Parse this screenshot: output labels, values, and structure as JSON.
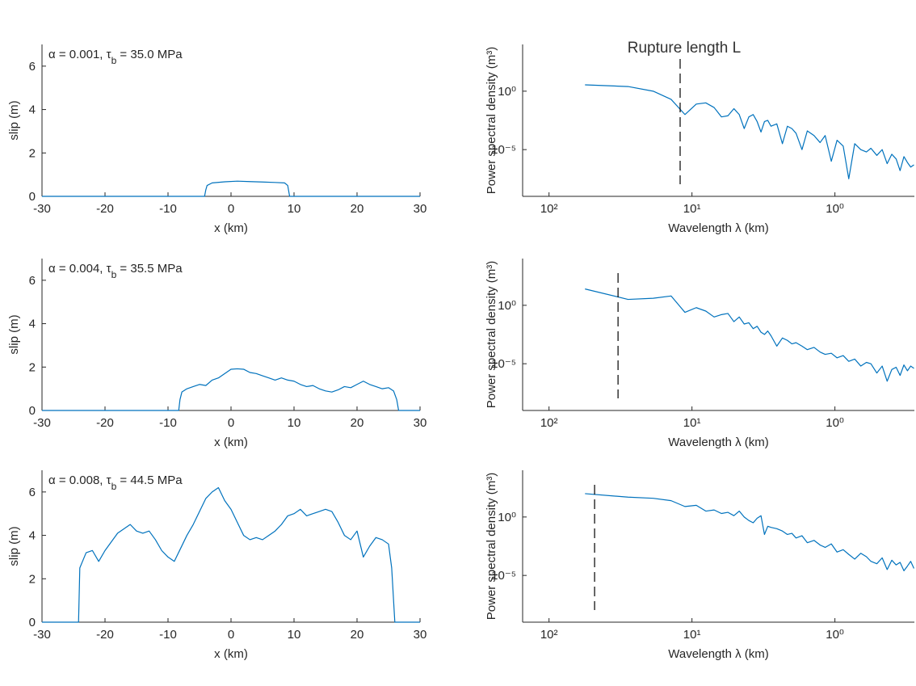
{
  "chart_data": [
    {
      "type": "line",
      "annotation": [
        "α = 0.001, τ",
        "b",
        " = 35.0 MPa"
      ],
      "xlabel": "x (km)",
      "ylabel": "slip (m)",
      "color": "#0072bd",
      "xlim": [
        -30,
        30
      ],
      "ylim": [
        0,
        7
      ],
      "xticks": [
        -30,
        -20,
        -10,
        0,
        10,
        20,
        30
      ],
      "yticks": [
        0,
        2,
        4,
        6
      ],
      "x": [
        -30,
        -4.2,
        -4,
        -3.8,
        -3,
        -1,
        1,
        3,
        5,
        7,
        8.5,
        9,
        9.3,
        30
      ],
      "values": [
        0,
        0,
        0.3,
        0.5,
        0.62,
        0.67,
        0.7,
        0.68,
        0.66,
        0.64,
        0.62,
        0.5,
        0,
        0
      ]
    },
    {
      "type": "line",
      "xlabel": "Wavelength λ (km)",
      "ylabel": "Power spectral density (m³)",
      "color": "#0072bd",
      "log_x": true,
      "log_y": true,
      "rupture_label": "Rupture length L",
      "rupture_length": 12.1,
      "xlim": [
        153,
        0.278
      ],
      "ylim": [
        1e-09,
        10000.0
      ],
      "xticks": [
        {
          "value": 100,
          "label": "10²"
        },
        {
          "value": 10,
          "label": "10¹"
        },
        {
          "value": 1,
          "label": "10⁰"
        }
      ],
      "yticks": [
        {
          "value": 1,
          "label": "10⁰"
        },
        {
          "value": 1e-05,
          "label": "10⁻⁵"
        }
      ],
      "x": [
        56,
        28,
        18.67,
        14,
        11.2,
        9.33,
        8,
        7,
        6.22,
        5.6,
        5.09,
        4.67,
        4.31,
        4,
        3.73,
        3.5,
        3.29,
        3.11,
        2.95,
        2.8,
        2.55,
        2.33,
        2.15,
        2,
        1.87,
        1.7,
        1.56,
        1.4,
        1.27,
        1.17,
        1.06,
        0.966,
        0.875,
        0.8,
        0.727,
        0.659,
        0.602,
        0.56,
        0.509,
        0.467,
        0.431,
        0.4,
        0.373,
        0.35,
        0.329,
        0.311,
        0.295,
        0.28
      ],
      "values": [
        3.5,
        2.5,
        1,
        0.2,
        0.01,
        0.079,
        0.1,
        0.04,
        0.0063,
        0.0079,
        0.032,
        0.01,
        0.00063,
        0.0063,
        0.01,
        0.0025,
        0.00032,
        0.0025,
        0.0032,
        0.001,
        0.0016,
        3.2e-05,
        0.001,
        0.00063,
        0.00025,
        1e-05,
        0.0004,
        0.00016,
        4e-05,
        0.00016,
        1e-06,
        6.3e-05,
        2e-05,
        3.2e-08,
        3.2e-05,
        1e-05,
        6.3e-06,
        1.3e-05,
        3.2e-06,
        1e-05,
        6.3e-07,
        4e-06,
        1.6e-06,
        1.6e-07,
        2.5e-06,
        7.9e-07,
        3.2e-07,
        5e-07
      ]
    },
    {
      "type": "line",
      "annotation": [
        "α = 0.004, τ",
        "b",
        " = 35.5 MPa"
      ],
      "xlabel": "x (km)",
      "ylabel": "slip (m)",
      "color": "#0072bd",
      "xlim": [
        -30,
        30
      ],
      "ylim": [
        0,
        7
      ],
      "xticks": [
        -30,
        -20,
        -10,
        0,
        10,
        20,
        30
      ],
      "yticks": [
        0,
        2,
        4,
        6
      ],
      "x": [
        -30,
        -8.3,
        -8.1,
        -7.8,
        -7,
        -6,
        -5,
        -4,
        -3,
        -2,
        -1,
        0,
        1,
        2,
        3,
        4,
        5,
        6,
        7,
        8,
        9,
        10,
        11,
        12,
        13,
        14,
        15,
        16,
        17,
        18,
        19,
        20,
        21,
        22,
        23,
        24,
        25,
        25.8,
        26.3,
        26.6,
        30
      ],
      "values": [
        0,
        0,
        0.5,
        0.85,
        1.0,
        1.1,
        1.2,
        1.15,
        1.4,
        1.5,
        1.7,
        1.9,
        1.92,
        1.9,
        1.75,
        1.7,
        1.6,
        1.5,
        1.4,
        1.5,
        1.4,
        1.35,
        1.2,
        1.1,
        1.15,
        1.0,
        0.9,
        0.85,
        0.95,
        1.1,
        1.05,
        1.2,
        1.35,
        1.2,
        1.1,
        1.0,
        1.05,
        0.9,
        0.5,
        0,
        0
      ]
    },
    {
      "type": "line",
      "xlabel": "Wavelength λ (km)",
      "ylabel": "Power spectral density (m³)",
      "color": "#0072bd",
      "log_x": true,
      "log_y": true,
      "rupture_length": 32.9,
      "xlim": [
        153,
        0.278
      ],
      "ylim": [
        1e-09,
        10000.0
      ],
      "xticks": [
        {
          "value": 100,
          "label": "10²"
        },
        {
          "value": 10,
          "label": "10¹"
        },
        {
          "value": 1,
          "label": "10⁰"
        }
      ],
      "yticks": [
        {
          "value": 1,
          "label": "10⁰"
        },
        {
          "value": 1e-05,
          "label": "10⁻⁵"
        }
      ],
      "x": [
        56,
        28,
        18.67,
        14,
        11.2,
        9.33,
        8,
        7,
        6.22,
        5.6,
        5.09,
        4.67,
        4.31,
        4,
        3.73,
        3.5,
        3.29,
        3.11,
        2.95,
        2.8,
        2.55,
        2.33,
        2.15,
        2,
        1.87,
        1.7,
        1.56,
        1.4,
        1.27,
        1.17,
        1.06,
        0.966,
        0.875,
        0.8,
        0.727,
        0.659,
        0.602,
        0.56,
        0.509,
        0.467,
        0.431,
        0.4,
        0.373,
        0.35,
        0.329,
        0.311,
        0.295,
        0.28
      ],
      "values": [
        25,
        3.2,
        4,
        6.3,
        0.25,
        0.63,
        0.32,
        0.1,
        0.16,
        0.2,
        0.04,
        0.1,
        0.025,
        0.032,
        0.01,
        0.016,
        0.005,
        0.0032,
        0.0063,
        0.0025,
        0.00032,
        0.0016,
        0.001,
        0.0005,
        0.00063,
        0.00032,
        0.00016,
        0.00025,
        0.0001,
        6.3e-05,
        7.9e-05,
        3.2e-05,
        5e-05,
        1.6e-05,
        2.5e-05,
        6.3e-06,
        1.3e-05,
        1e-05,
        1.6e-06,
        6.3e-06,
        3.2e-07,
        3.2e-06,
        5e-06,
        1e-06,
        7.9e-06,
        2.5e-06,
        6.3e-06,
        4e-06
      ]
    },
    {
      "type": "line",
      "annotation": [
        "α = 0.008, τ",
        "b",
        " = 44.5 MPa"
      ],
      "xlabel": "x (km)",
      "ylabel": "slip (m)",
      "color": "#0072bd",
      "xlim": [
        -30,
        30
      ],
      "ylim": [
        0,
        7
      ],
      "xticks": [
        -30,
        -20,
        -10,
        0,
        10,
        20,
        30
      ],
      "yticks": [
        0,
        2,
        4,
        6
      ],
      "x": [
        -30,
        -24.2,
        -24,
        -23,
        -22,
        -21,
        -20,
        -19,
        -18,
        -17,
        -16,
        -15,
        -14,
        -13,
        -12,
        -11,
        -10,
        -9,
        -8,
        -7,
        -6,
        -5,
        -4,
        -3,
        -2,
        -1,
        0,
        1,
        2,
        3,
        4,
        5,
        6,
        7,
        8,
        9,
        10,
        11,
        12,
        13,
        14,
        15,
        16,
        17,
        18,
        19,
        20,
        21,
        22,
        23,
        24,
        25,
        25.5,
        26,
        30
      ],
      "values": [
        0,
        0,
        2.5,
        3.2,
        3.3,
        2.8,
        3.3,
        3.7,
        4.1,
        4.3,
        4.5,
        4.2,
        4.1,
        4.2,
        3.8,
        3.3,
        3.0,
        2.8,
        3.4,
        4.0,
        4.5,
        5.1,
        5.7,
        6.0,
        6.2,
        5.6,
        5.2,
        4.6,
        4.0,
        3.8,
        3.9,
        3.8,
        4.0,
        4.2,
        4.5,
        4.9,
        5.0,
        5.2,
        4.9,
        5.0,
        5.1,
        5.2,
        5.1,
        4.6,
        4.0,
        3.8,
        4.2,
        3.0,
        3.5,
        3.9,
        3.8,
        3.6,
        2.5,
        0,
        0
      ]
    },
    {
      "type": "line",
      "xlabel": "Wavelength λ (km)",
      "ylabel": "Power spectral density (m³)",
      "color": "#0072bd",
      "log_x": true,
      "log_y": true,
      "rupture_length": 48,
      "xlim": [
        153,
        0.278
      ],
      "ylim": [
        1e-09,
        10000.0
      ],
      "xticks": [
        {
          "value": 100,
          "label": "10²"
        },
        {
          "value": 10,
          "label": "10¹"
        },
        {
          "value": 1,
          "label": "10⁰"
        }
      ],
      "yticks": [
        {
          "value": 1,
          "label": "10⁰"
        },
        {
          "value": 1e-05,
          "label": "10⁻⁵"
        }
      ],
      "x": [
        56,
        28,
        18.67,
        14,
        11.2,
        9.33,
        8,
        7,
        6.22,
        5.6,
        5.09,
        4.67,
        4.31,
        4,
        3.73,
        3.5,
        3.29,
        3.11,
        2.95,
        2.8,
        2.55,
        2.33,
        2.15,
        2,
        1.87,
        1.7,
        1.56,
        1.4,
        1.27,
        1.17,
        1.06,
        0.966,
        0.875,
        0.8,
        0.727,
        0.659,
        0.602,
        0.56,
        0.509,
        0.467,
        0.431,
        0.4,
        0.373,
        0.35,
        0.329,
        0.311,
        0.295,
        0.28
      ],
      "values": [
        100,
        50,
        40,
        25,
        7.9,
        10,
        3.2,
        4,
        2,
        2.5,
        1.3,
        3.2,
        1,
        0.5,
        0.32,
        0.79,
        1.3,
        0.032,
        0.16,
        0.13,
        0.1,
        0.063,
        0.032,
        0.04,
        0.016,
        0.025,
        0.0063,
        0.01,
        0.004,
        0.0025,
        0.005,
        0.001,
        0.0016,
        0.00063,
        0.00025,
        0.00079,
        0.0004,
        0.00016,
        0.0001,
        0.00032,
        3.2e-05,
        0.0002,
        7.9e-05,
        0.00013,
        2.5e-05,
        6.3e-05,
        0.00016,
        4e-05
      ]
    }
  ]
}
